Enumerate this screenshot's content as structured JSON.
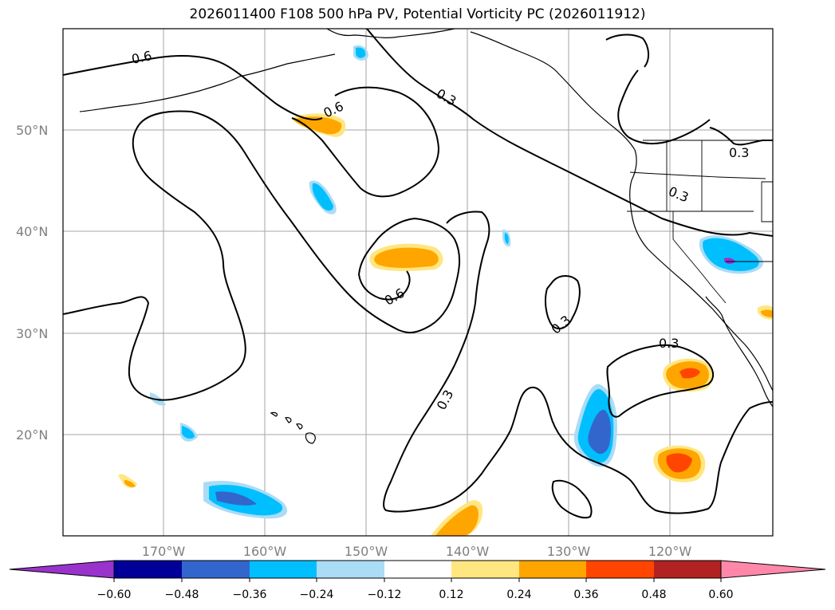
{
  "title": "2026011400 F108 500 hPa PV, Potential Vorticity PC (2026011912)",
  "map": {
    "lat_labels": [
      "50°N",
      "40°N",
      "30°N",
      "20°N"
    ],
    "lon_labels": [
      "170°W",
      "160°W",
      "150°W",
      "140°W",
      "130°W",
      "120°W"
    ],
    "contour_labels": [
      "0.6",
      "0.6",
      "0.3",
      "0.3",
      "0.6",
      "0.3",
      "0.3",
      "0.3",
      "0.3"
    ]
  },
  "colorbar": {
    "ticks": [
      "−0.60",
      "−0.48",
      "−0.36",
      "−0.24",
      "−0.12",
      "0.12",
      "0.24",
      "0.36",
      "0.48",
      "0.60"
    ],
    "colors": [
      "#9933cc",
      "#000099",
      "#3366cc",
      "#00bfff",
      "#aadcf5",
      "#ffffff",
      "#ffe680",
      "#ffa500",
      "#ff4500",
      "#b22222",
      "#ff88aa",
      "#ff88aa"
    ]
  },
  "legend_colors": {
    "neg_light": "#aadcf5",
    "neg_mid": "#00bfff",
    "neg_dark": "#3366cc",
    "pos_light": "#ffe680",
    "pos_mid": "#ffa500",
    "pos_dark": "#ff4500"
  }
}
